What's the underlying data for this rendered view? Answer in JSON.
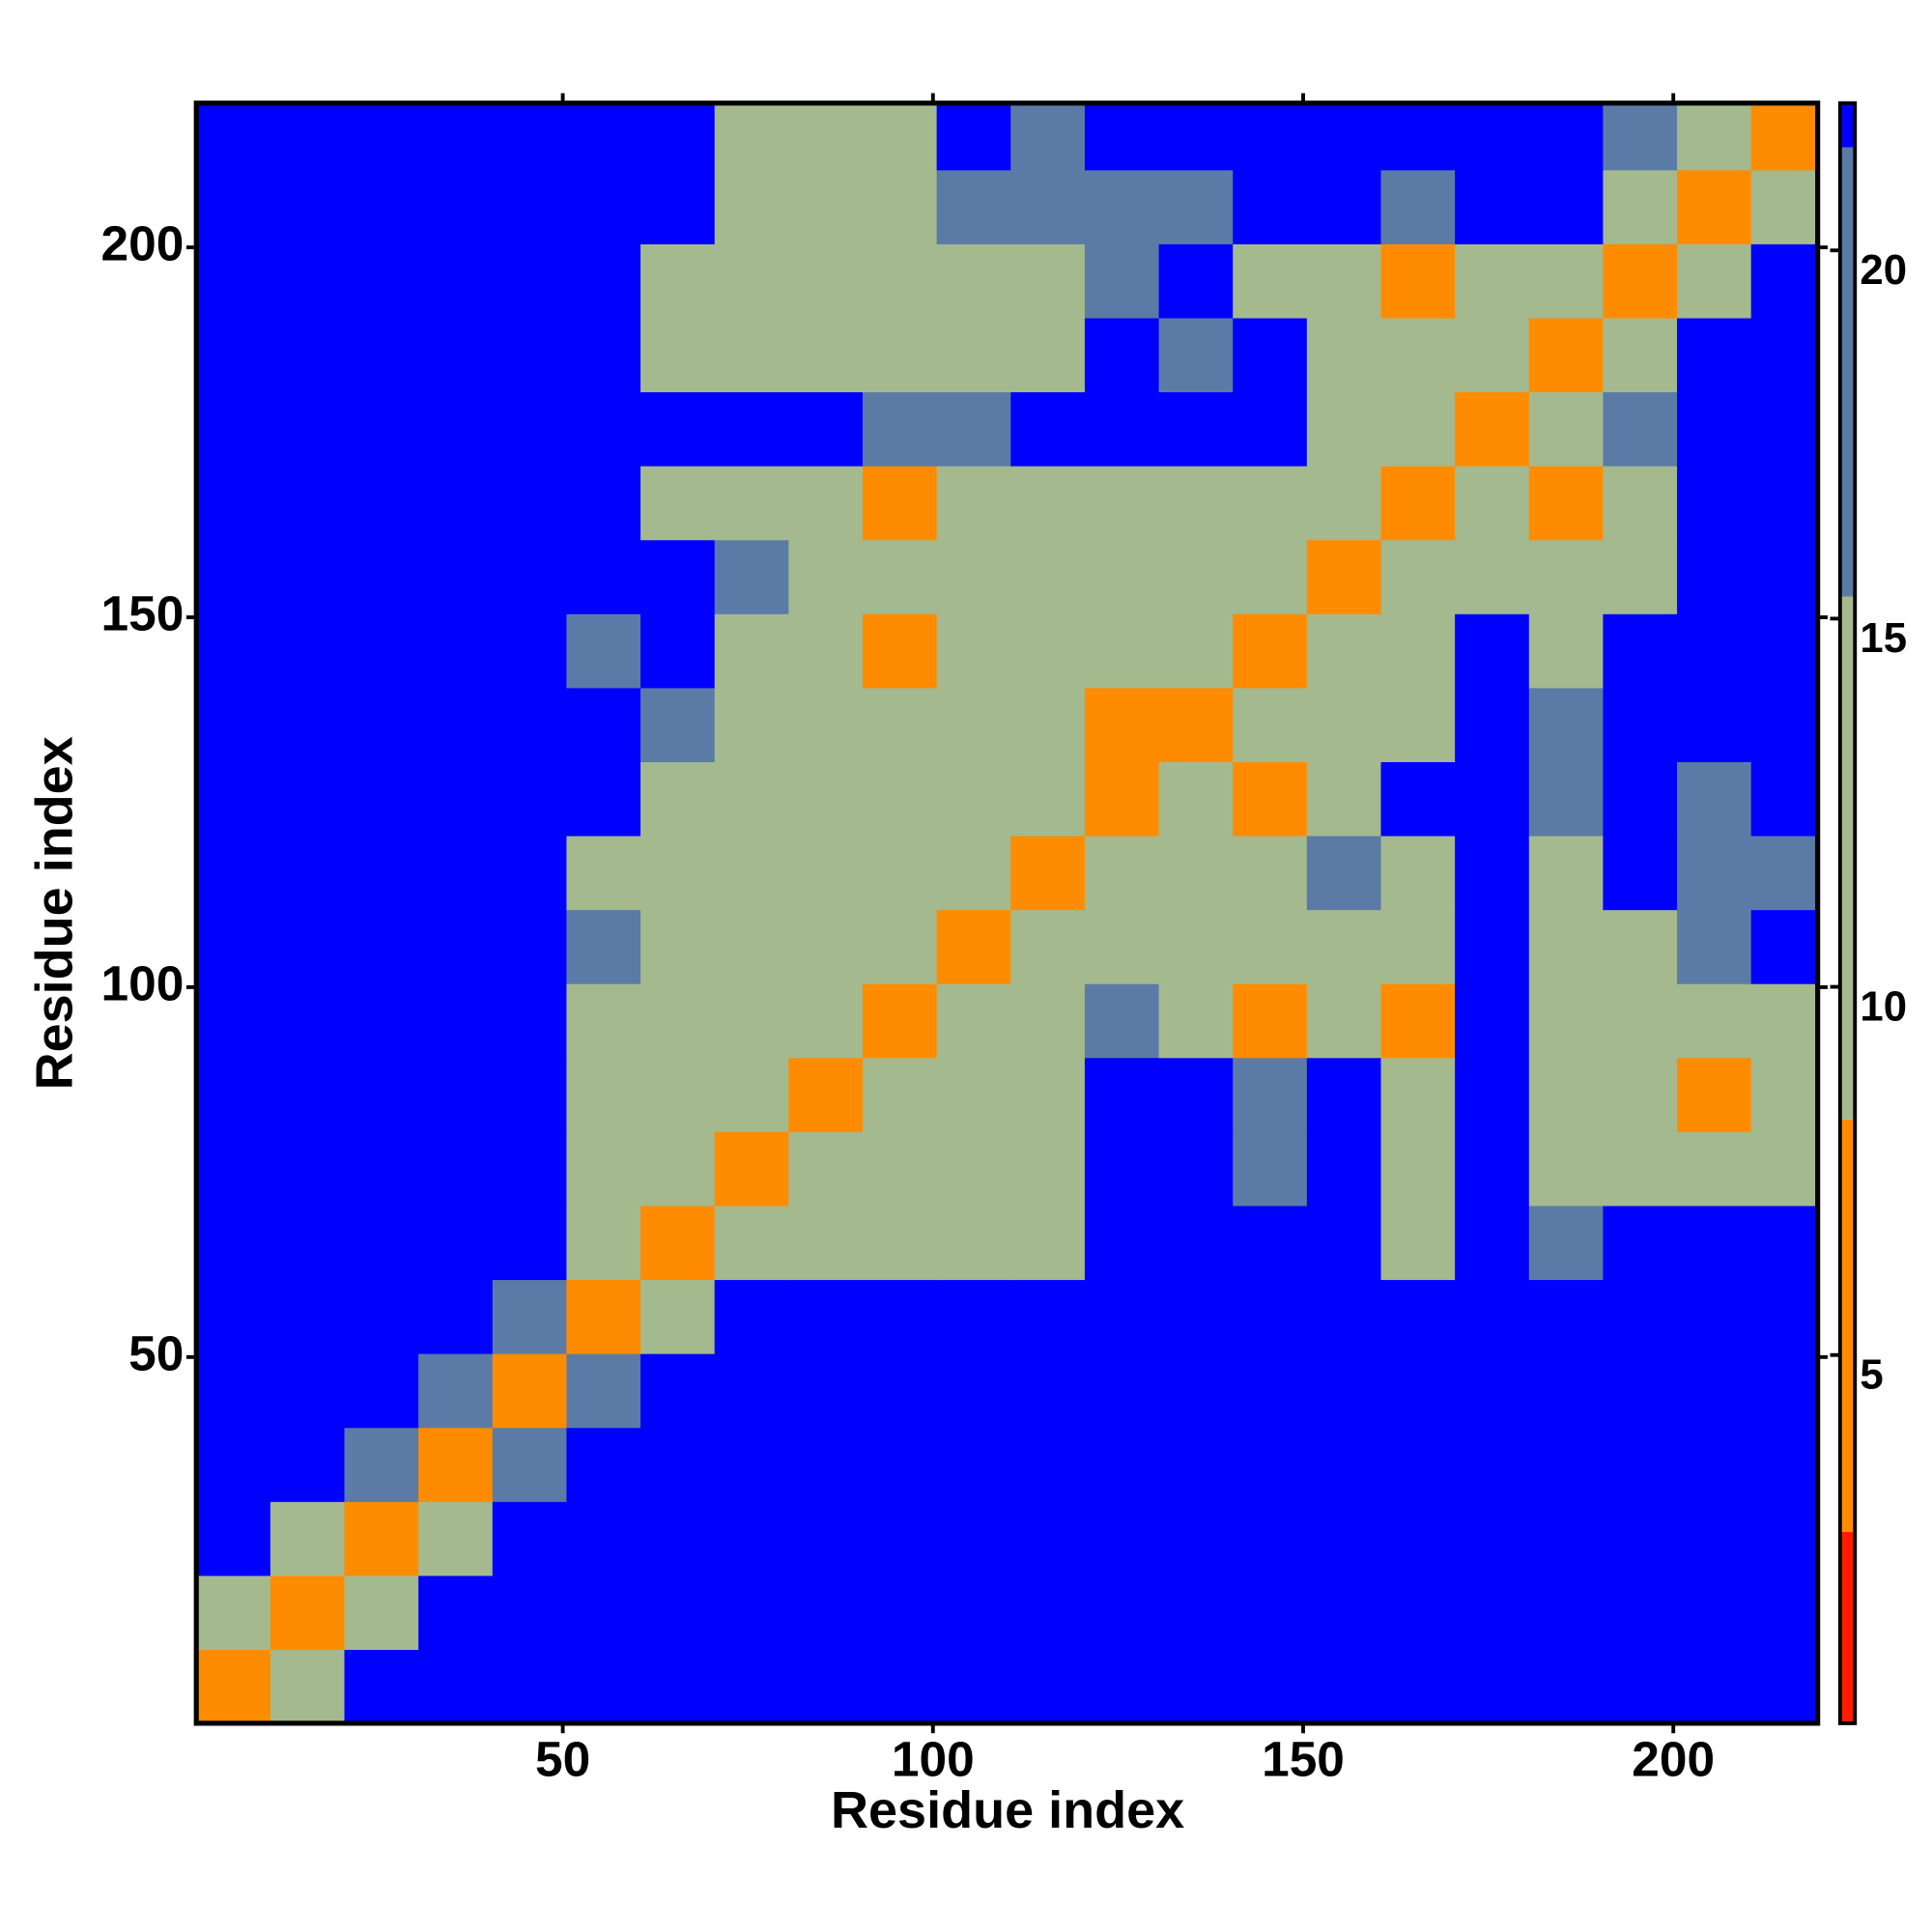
{
  "chart_data": {
    "type": "heatmap",
    "x_label": "Residue index",
    "y_label": "Residue index",
    "xlim": [
      0.5,
      219.5
    ],
    "ylim": [
      0.5,
      219.5
    ],
    "xticks": [
      50,
      100,
      150,
      200
    ],
    "yticks": [
      50,
      100,
      150,
      200
    ],
    "xbins": [
      0.5,
      10.5,
      20.5,
      30.5,
      40.5,
      50.5,
      60.5,
      70.5,
      80.5,
      90.5,
      100.5,
      110.5,
      120.5,
      130.5,
      140.5,
      150.5,
      160.5,
      170.5,
      180.5,
      190.5,
      200.5,
      210.5,
      219.5
    ],
    "ybins": [
      0.5,
      10.5,
      20.5,
      30.5,
      40.5,
      50.5,
      60.5,
      70.5,
      80.5,
      90.5,
      100.5,
      110.5,
      120.5,
      130.5,
      140.5,
      150.5,
      160.5,
      170.5,
      180.5,
      190.5,
      200.5,
      210.5,
      219.5
    ],
    "z": [
      [
        3,
        12,
        22,
        22,
        22,
        22,
        22,
        22,
        22,
        22,
        22,
        22,
        22,
        22,
        22,
        22,
        22,
        22,
        22,
        22,
        22,
        22
      ],
      [
        12,
        3,
        12,
        22,
        22,
        22,
        22,
        22,
        22,
        22,
        22,
        22,
        22,
        22,
        22,
        22,
        22,
        22,
        22,
        22,
        22,
        22
      ],
      [
        22,
        12,
        3,
        12,
        22,
        22,
        22,
        22,
        22,
        22,
        22,
        22,
        22,
        22,
        22,
        22,
        22,
        22,
        22,
        22,
        22,
        22
      ],
      [
        22,
        22,
        16,
        3,
        16,
        22,
        22,
        22,
        22,
        22,
        22,
        22,
        22,
        22,
        22,
        22,
        22,
        22,
        22,
        22,
        22,
        22
      ],
      [
        22,
        22,
        22,
        16,
        3,
        16,
        22,
        22,
        22,
        22,
        22,
        22,
        22,
        22,
        22,
        22,
        22,
        22,
        22,
        22,
        22,
        22
      ],
      [
        22,
        22,
        22,
        22,
        16,
        3,
        12,
        22,
        22,
        22,
        22,
        22,
        22,
        22,
        22,
        22,
        22,
        22,
        22,
        22,
        22,
        22
      ],
      [
        22,
        22,
        22,
        22,
        22,
        12,
        3,
        12,
        12,
        14,
        12,
        12,
        22,
        22,
        22,
        22,
        14,
        22,
        16,
        22,
        22,
        22
      ],
      [
        22,
        22,
        22,
        22,
        22,
        14,
        12,
        3,
        12,
        12,
        12,
        12,
        22,
        22,
        18,
        22,
        12,
        22,
        14,
        14,
        12,
        12
      ],
      [
        22,
        22,
        22,
        22,
        22,
        14,
        12,
        12,
        3,
        12,
        12,
        12,
        22,
        22,
        18,
        22,
        12,
        22,
        14,
        12,
        8,
        12
      ],
      [
        22,
        22,
        22,
        22,
        22,
        14,
        12,
        12,
        12,
        3,
        12,
        12,
        16,
        14,
        7,
        12,
        7,
        22,
        14,
        12,
        12,
        14
      ],
      [
        22,
        22,
        22,
        22,
        22,
        16,
        12,
        12,
        14,
        12,
        3,
        12,
        14,
        14,
        12,
        14,
        12,
        22,
        14,
        12,
        18,
        22
      ],
      [
        22,
        22,
        22,
        22,
        22,
        14,
        9,
        12,
        12,
        12,
        12,
        3,
        12,
        14,
        12,
        16,
        12,
        22,
        14,
        22,
        18,
        18
      ],
      [
        22,
        22,
        22,
        22,
        22,
        22,
        14,
        12,
        14,
        12,
        12,
        12,
        3,
        12,
        8,
        14,
        22,
        22,
        18,
        22,
        18,
        22
      ],
      [
        22,
        22,
        22,
        22,
        22,
        22,
        18,
        14,
        14,
        12,
        14,
        12,
        7,
        3,
        12,
        12,
        14,
        22,
        16,
        22,
        22,
        22
      ],
      [
        22,
        22,
        22,
        22,
        22,
        18,
        22,
        14,
        14,
        7,
        14,
        12,
        12,
        12,
        3,
        12,
        12,
        22,
        14,
        22,
        22,
        22
      ],
      [
        22,
        22,
        22,
        22,
        22,
        22,
        22,
        16,
        14,
        12,
        12,
        14,
        12,
        12,
        12,
        3,
        12,
        12,
        14,
        14,
        22,
        22
      ],
      [
        22,
        22,
        22,
        22,
        22,
        22,
        14,
        14,
        14,
        7,
        12,
        14,
        14,
        12,
        12,
        12,
        3,
        12,
        7,
        12,
        22,
        22
      ],
      [
        22,
        22,
        22,
        22,
        22,
        22,
        22,
        22,
        22,
        16,
        18,
        22,
        22,
        22,
        22,
        14,
        12,
        3,
        12,
        16,
        22,
        22
      ],
      [
        22,
        22,
        22,
        22,
        22,
        22,
        12,
        14,
        12,
        12,
        12,
        14,
        22,
        18,
        22,
        14,
        12,
        12,
        3,
        12,
        22,
        22
      ],
      [
        22,
        22,
        22,
        22,
        22,
        22,
        12,
        14,
        12,
        12,
        14,
        14,
        18,
        22,
        14,
        12,
        7,
        12,
        12,
        3,
        12,
        22
      ],
      [
        22,
        22,
        22,
        22,
        22,
        22,
        22,
        12,
        10,
        12,
        18,
        18,
        16,
        18,
        22,
        22,
        18,
        22,
        22,
        12,
        3,
        12
      ],
      [
        22,
        22,
        22,
        22,
        22,
        22,
        22,
        12,
        12,
        14,
        22,
        18,
        22,
        22,
        22,
        22,
        22,
        22,
        22,
        16,
        12,
        3
      ]
    ],
    "colorbar": {
      "lim": [
        0,
        22
      ],
      "ticks": [
        5,
        10,
        15,
        20
      ],
      "levels": [
        0,
        2.6,
        8.2,
        15.3,
        21.4,
        22
      ],
      "colors": [
        "#ff1a00",
        "#ff8c00",
        "#a4b98e",
        "#5b7ba6",
        "#0000ff"
      ]
    }
  }
}
